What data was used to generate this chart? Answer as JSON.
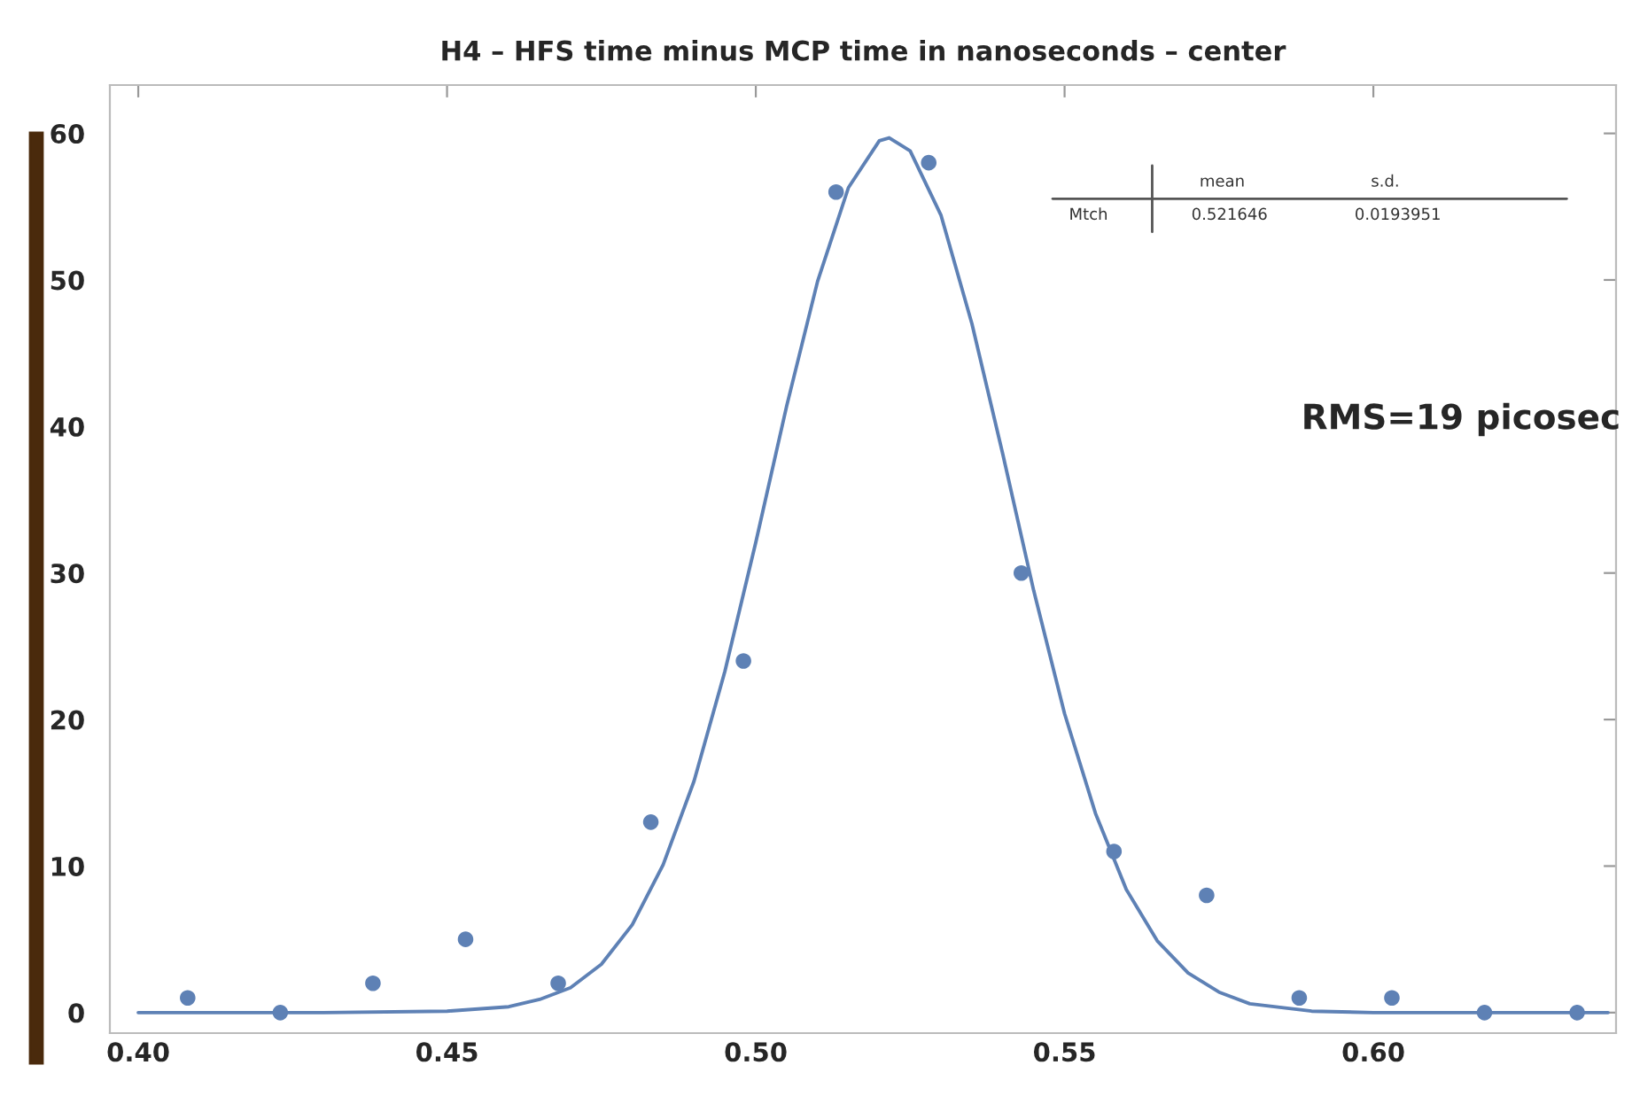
{
  "chart_data": {
    "type": "scatter",
    "title": "H4 – HFS time minus MCP time in nanoseconds – center",
    "x": [
      0.408,
      0.423,
      0.438,
      0.453,
      0.468,
      0.483,
      0.498,
      0.513,
      0.528,
      0.543,
      0.558,
      0.573,
      0.588,
      0.603,
      0.618,
      0.633
    ],
    "series": [
      {
        "color": "#5e81b5",
        "marker": "circle",
        "values": [
          1,
          0,
          2,
          5,
          2,
          13,
          24,
          56,
          58,
          30,
          11,
          8,
          1,
          1,
          0,
          0
        ]
      },
      {
        "type": "line",
        "marker": "none",
        "color": "#5e81b5",
        "x": [
          0.4,
          0.43,
          0.45,
          0.46,
          0.465,
          0.47,
          0.475,
          0.48,
          0.485,
          0.49,
          0.495,
          0.5,
          0.505,
          0.51,
          0.515,
          0.52,
          0.5216,
          0.525,
          0.53,
          0.535,
          0.54,
          0.545,
          0.55,
          0.555,
          0.56,
          0.565,
          0.57,
          0.575,
          0.58,
          0.59,
          0.6,
          0.638
        ],
        "values": [
          0,
          0,
          0.1,
          0.4,
          0.9,
          1.7,
          3.3,
          6.0,
          10.1,
          15.8,
          23.3,
          32.1,
          41.4,
          49.9,
          56.3,
          59.5,
          59.7,
          58.8,
          54.4,
          47.0,
          38.1,
          28.8,
          20.4,
          13.6,
          8.4,
          4.9,
          2.7,
          1.4,
          0.6,
          0.1,
          0,
          0
        ]
      }
    ],
    "xlim": [
      0.3954,
      0.6393
    ],
    "ylim": [
      -1.4,
      63.3
    ],
    "xticks": [
      {
        "value": 0.4,
        "label": "0.40"
      },
      {
        "value": 0.45,
        "label": "0.45"
      },
      {
        "value": 0.5,
        "label": "0.50"
      },
      {
        "value": 0.55,
        "label": "0.55"
      },
      {
        "value": 0.6,
        "label": "0.60"
      }
    ],
    "yticks": [
      0,
      10,
      20,
      30,
      40,
      50,
      60
    ],
    "line_style": "solid",
    "grid": false,
    "legend": false,
    "annotations": [
      "RMS=19 picosec",
      "mean",
      "s.d.",
      "Mtch",
      "0.521646",
      "0.0193951"
    ]
  }
}
